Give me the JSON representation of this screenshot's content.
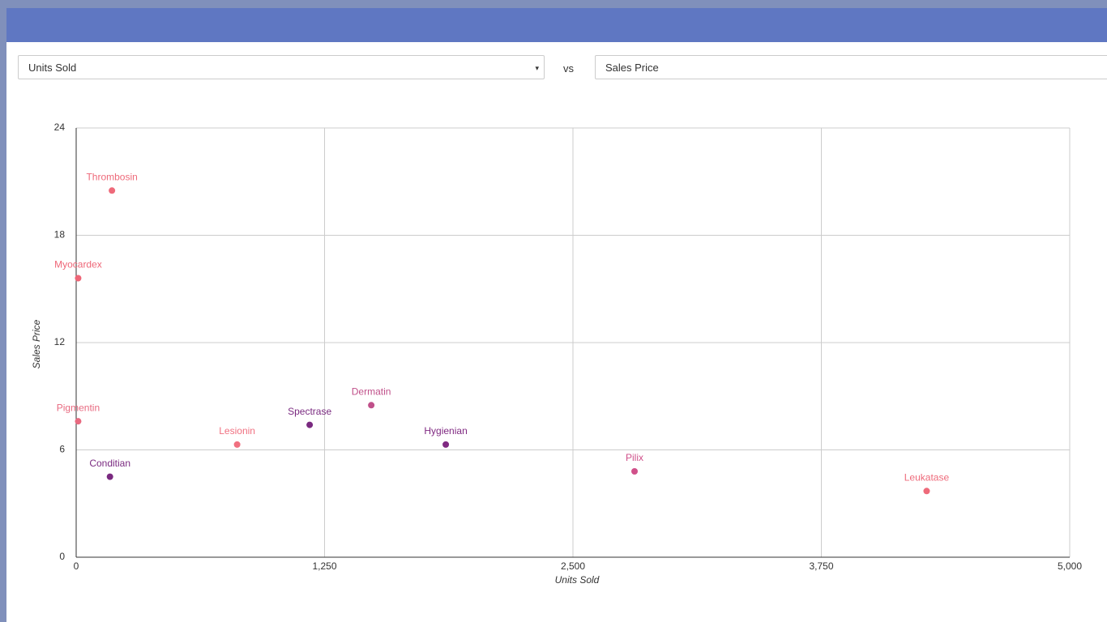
{
  "controls": {
    "x_select": "Units Sold",
    "vs": "vs",
    "y_select": "Sales Price"
  },
  "chart_data": {
    "type": "scatter",
    "x_label": "Units Sold",
    "y_label": "Sales Price",
    "labels": [
      "Thrombosin",
      "Myocardex",
      "Pigmentin",
      "Conditian",
      "Lesionin",
      "Spectrase",
      "Dermatin",
      "Hygienian",
      "Pilix",
      "Leukatase"
    ],
    "x": [
      180,
      10,
      10,
      170,
      810,
      1175,
      1485,
      1860,
      2810,
      4280
    ],
    "values": [
      20.5,
      15.6,
      7.6,
      4.5,
      6.3,
      7.4,
      8.5,
      6.3,
      4.8,
      3.7
    ],
    "colors": [
      "#ee6a7a",
      "#ee6677",
      "#e86a80",
      "#7a2a80",
      "#f07080",
      "#7a2a80",
      "#c0508a",
      "#802a82",
      "#d0508a",
      "#ee6a7a"
    ],
    "xlim": [
      0,
      5000
    ],
    "ylim": [
      0,
      24
    ],
    "xticks": [
      0,
      {
        "value": 1250,
        "label": "1,250"
      },
      {
        "value": 2500,
        "label": "2,500"
      },
      {
        "value": 3750,
        "label": "3,750"
      },
      {
        "value": 5000,
        "label": "5,000"
      }
    ],
    "yticks": [
      0,
      6,
      12,
      18,
      24
    ],
    "grid": true
  }
}
